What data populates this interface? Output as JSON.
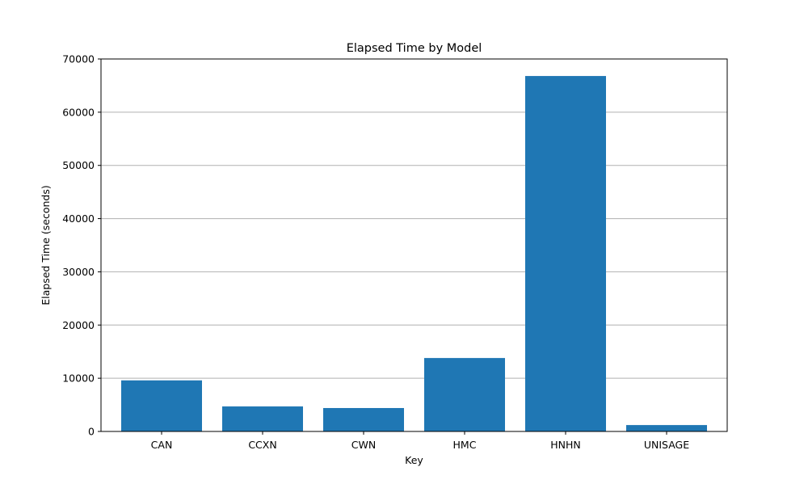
{
  "chart_data": {
    "type": "bar",
    "title": "Elapsed Time by Model",
    "xlabel": "Key",
    "ylabel": "Elapsed Time (seconds)",
    "categories": [
      "CAN",
      "CCXN",
      "CWN",
      "HMC",
      "HNHN",
      "UNISAGE"
    ],
    "values": [
      9600,
      4700,
      4400,
      13800,
      66800,
      1200
    ],
    "ylim": [
      0,
      70000
    ],
    "yticks": [
      0,
      10000,
      20000,
      30000,
      40000,
      50000,
      60000,
      70000
    ],
    "grid": "y-axis only",
    "legend": "none",
    "bar_color": "#1f77b4",
    "grid_color": "#b0b0b0"
  }
}
